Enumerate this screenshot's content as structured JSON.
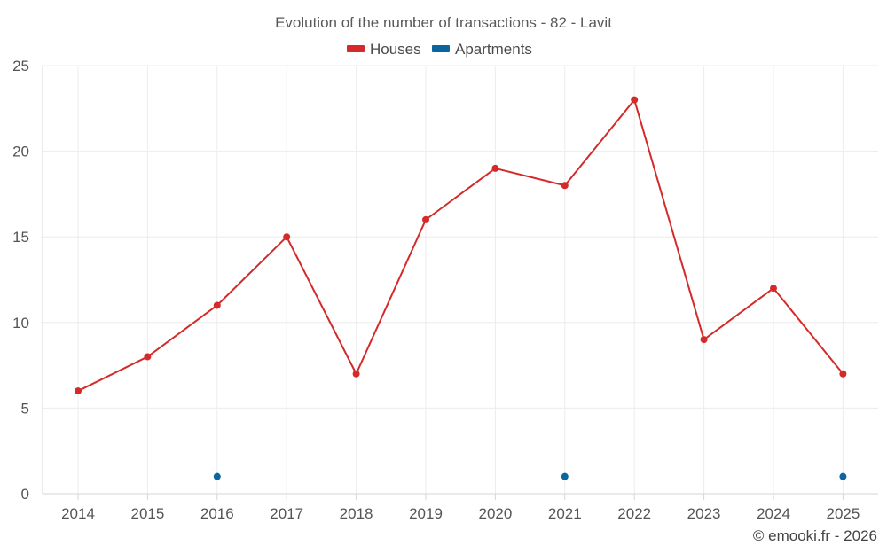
{
  "chart_data": {
    "type": "line",
    "title": "Evolution of the number of transactions - 82 - Lavit",
    "categories": [
      "2014",
      "2015",
      "2016",
      "2017",
      "2018",
      "2019",
      "2020",
      "2021",
      "2022",
      "2023",
      "2024",
      "2025"
    ],
    "series": [
      {
        "name": "Houses",
        "color": "#d42a2a",
        "values": [
          6,
          8,
          11,
          15,
          7,
          16,
          19,
          18,
          23,
          9,
          12,
          7
        ]
      },
      {
        "name": "Apartments",
        "color": "#0a65a0",
        "values": [
          null,
          null,
          1,
          null,
          null,
          null,
          null,
          1,
          null,
          null,
          null,
          1
        ]
      }
    ],
    "ylim": [
      0,
      25
    ],
    "yticks": [
      "0",
      "5",
      "10",
      "15",
      "20",
      "25"
    ],
    "xlabel": "",
    "ylabel": "",
    "grid": true,
    "legend": "top-center"
  },
  "credit": "© emooki.fr - 2026"
}
